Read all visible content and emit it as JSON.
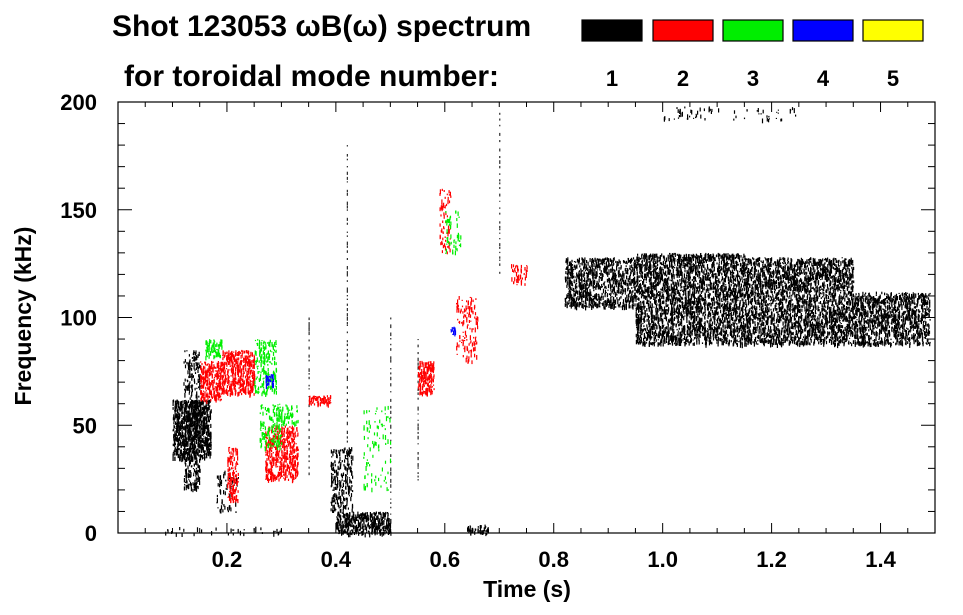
{
  "chart_data": {
    "type": "spectrogram",
    "title_line1": "Shot 123053 ωB(ω) spectrum",
    "title_line2": "for toroidal mode number:",
    "xlabel": "Time (s)",
    "ylabel": "Frequency (kHz)",
    "xlim": [
      0.0,
      1.5
    ],
    "ylim": [
      0,
      200
    ],
    "x_ticks": [
      0.2,
      0.4,
      0.6,
      0.8,
      1.0,
      1.2,
      1.4
    ],
    "x_tick_labels": [
      "0.2",
      "0.4",
      "0.6",
      "0.8",
      "1.0",
      "1.2",
      "1.4"
    ],
    "y_ticks": [
      0,
      50,
      100,
      150,
      200
    ],
    "y_tick_labels": [
      "0",
      "50",
      "100",
      "150",
      "200"
    ],
    "legend": [
      {
        "label": "1",
        "color": "#000000"
      },
      {
        "label": "2",
        "color": "#ff0000"
      },
      {
        "label": "3",
        "color": "#00ee00"
      },
      {
        "label": "4",
        "color": "#0000ff"
      },
      {
        "label": "5",
        "color": "#ffff00"
      }
    ],
    "series": [
      {
        "mode": "1",
        "color": "#000000",
        "regions": [
          {
            "t": [
              0.1,
              0.17
            ],
            "f": [
              35,
              62
            ],
            "density": 0.85
          },
          {
            "t": [
              0.12,
              0.15
            ],
            "f": [
              20,
              85
            ],
            "density": 0.35
          },
          {
            "t": [
              0.18,
              0.22
            ],
            "f": [
              10,
              30
            ],
            "density": 0.15
          },
          {
            "t": [
              0.4,
              0.5
            ],
            "f": [
              0,
              10
            ],
            "density": 0.75
          },
          {
            "t": [
              0.39,
              0.43
            ],
            "f": [
              10,
              40
            ],
            "density": 0.35
          },
          {
            "t": [
              0.64,
              0.68
            ],
            "f": [
              0,
              4
            ],
            "density": 0.5
          },
          {
            "t": [
              0.82,
              0.95
            ],
            "f": [
              105,
              128
            ],
            "density": 0.55
          },
          {
            "t": [
              0.95,
              1.15
            ],
            "f": [
              88,
              130
            ],
            "density": 0.6
          },
          {
            "t": [
              1.15,
              1.35
            ],
            "f": [
              88,
              128
            ],
            "density": 0.6
          },
          {
            "t": [
              1.35,
              1.49
            ],
            "f": [
              88,
              112
            ],
            "density": 0.6
          },
          {
            "t": [
              1.0,
              1.25
            ],
            "f": [
              192,
              198
            ],
            "density": 0.08
          },
          {
            "t": [
              0.08,
              0.3
            ],
            "f": [
              0,
              3
            ],
            "density": 0.1
          }
        ],
        "lines": [
          {
            "t": 0.42,
            "f": [
              20,
              180
            ]
          },
          {
            "t": 0.35,
            "f": [
              25,
              100
            ]
          },
          {
            "t": 0.5,
            "f": [
              10,
              100
            ]
          },
          {
            "t": 0.55,
            "f": [
              25,
              90
            ]
          },
          {
            "t": 0.7,
            "f": [
              120,
              195
            ]
          }
        ]
      },
      {
        "mode": "2",
        "color": "#ff0000",
        "regions": [
          {
            "t": [
              0.15,
              0.19
            ],
            "f": [
              62,
              80
            ],
            "density": 0.7
          },
          {
            "t": [
              0.19,
              0.25
            ],
            "f": [
              65,
              85
            ],
            "density": 0.7
          },
          {
            "t": [
              0.2,
              0.22
            ],
            "f": [
              15,
              40
            ],
            "density": 0.5
          },
          {
            "t": [
              0.27,
              0.33
            ],
            "f": [
              25,
              50
            ],
            "density": 0.6
          },
          {
            "t": [
              0.35,
              0.39
            ],
            "f": [
              60,
              64
            ],
            "density": 0.85
          },
          {
            "t": [
              0.55,
              0.58
            ],
            "f": [
              65,
              80
            ],
            "density": 0.7
          },
          {
            "t": [
              0.59,
              0.61
            ],
            "f": [
              130,
              160
            ],
            "density": 0.2
          },
          {
            "t": [
              0.62,
              0.66
            ],
            "f": [
              80,
              110
            ],
            "density": 0.2
          },
          {
            "t": [
              0.72,
              0.75
            ],
            "f": [
              115,
              125
            ],
            "density": 0.3
          }
        ]
      },
      {
        "mode": "3",
        "color": "#00ee00",
        "regions": [
          {
            "t": [
              0.16,
              0.19
            ],
            "f": [
              82,
              90
            ],
            "density": 0.6
          },
          {
            "t": [
              0.25,
              0.29
            ],
            "f": [
              65,
              90
            ],
            "density": 0.35
          },
          {
            "t": [
              0.26,
              0.3
            ],
            "f": [
              40,
              60
            ],
            "density": 0.3
          },
          {
            "t": [
              0.29,
              0.33
            ],
            "f": [
              50,
              60
            ],
            "density": 0.3
          },
          {
            "t": [
              0.6,
              0.63
            ],
            "f": [
              130,
              150
            ],
            "density": 0.15
          },
          {
            "t": [
              0.45,
              0.5
            ],
            "f": [
              20,
              60
            ],
            "density": 0.08
          }
        ]
      },
      {
        "mode": "4",
        "color": "#0000ff",
        "regions": [
          {
            "t": [
              0.27,
              0.285
            ],
            "f": [
              68,
              74
            ],
            "density": 0.7
          },
          {
            "t": [
              0.61,
              0.62
            ],
            "f": [
              92,
              96
            ],
            "density": 0.5
          }
        ]
      },
      {
        "mode": "5",
        "color": "#ffff00",
        "regions": []
      }
    ]
  }
}
